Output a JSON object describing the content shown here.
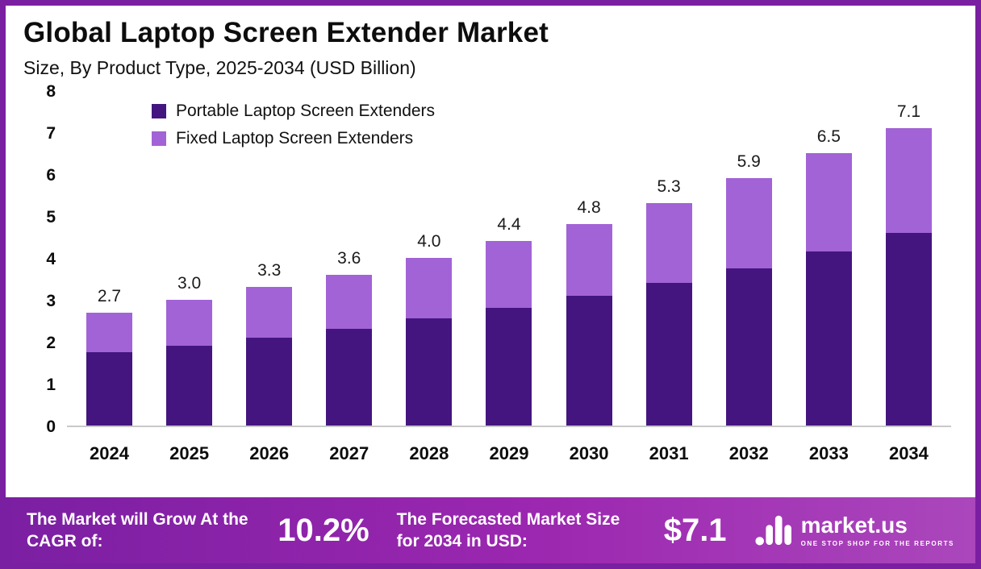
{
  "header": {
    "title": "Global Laptop Screen Extender Market",
    "subtitle": "Size, By Product Type, 2025-2034 (USD Billion)"
  },
  "chart_data": {
    "type": "bar",
    "stacked": true,
    "title": "Global Laptop Screen Extender Market Size, By Product Type, 2025-2034 (USD Billion)",
    "categories": [
      "2024",
      "2025",
      "2026",
      "2027",
      "2028",
      "2029",
      "2030",
      "2031",
      "2032",
      "2033",
      "2034"
    ],
    "series": [
      {
        "name": "Portable Laptop Screen Extenders",
        "color": "#44157F",
        "values": [
          1.75,
          1.9,
          2.1,
          2.3,
          2.55,
          2.8,
          3.1,
          3.4,
          3.75,
          4.15,
          4.6
        ]
      },
      {
        "name": "Fixed Laptop Screen Extenders",
        "color": "#A263D6",
        "values": [
          0.95,
          1.1,
          1.2,
          1.3,
          1.45,
          1.6,
          1.7,
          1.9,
          2.15,
          2.35,
          2.5
        ]
      }
    ],
    "totals_labels": [
      "2.7",
      "3.0",
      "3.3",
      "3.6",
      "4.0",
      "4.4",
      "4.8",
      "5.3",
      "5.9",
      "6.5",
      "7.1"
    ],
    "ylim": [
      0,
      8
    ],
    "yticks": [
      0,
      1,
      2,
      3,
      4,
      5,
      6,
      7,
      8
    ],
    "xlabel": "",
    "ylabel": "",
    "grid": false,
    "legend_position": "top-left"
  },
  "footer": {
    "cagr_label": "The Market will Grow At the CAGR of:",
    "cagr_value": "10.2%",
    "forecast_label": "The Forecasted Market Size for 2034 in USD:",
    "forecast_value": "$7.1",
    "brand": "market.us",
    "brand_tagline": "ONE STOP SHOP FOR THE REPORTS"
  },
  "colors": {
    "frame": "#7A1FA2",
    "footer_gradient_start": "#7B1FA2",
    "footer_gradient_mid": "#9C27B0",
    "footer_gradient_end": "#AB47BC",
    "bar_dark": "#44157F",
    "bar_light": "#A263D6",
    "baseline": "#c9c9c9"
  }
}
